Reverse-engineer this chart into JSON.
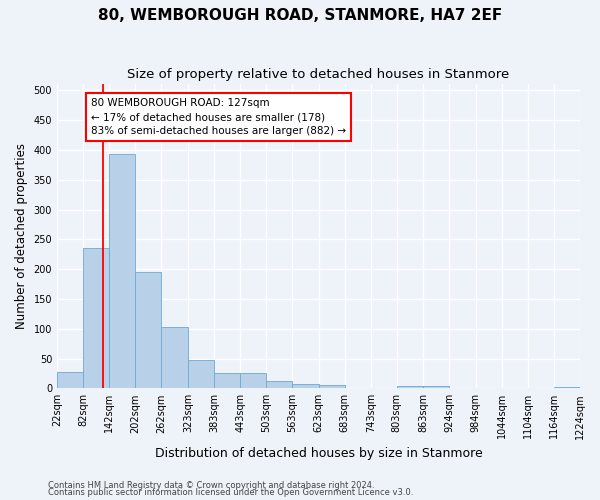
{
  "title": "80, WEMBOROUGH ROAD, STANMORE, HA7 2EF",
  "subtitle": "Size of property relative to detached houses in Stanmore",
  "xlabel": "Distribution of detached houses by size in Stanmore",
  "ylabel": "Number of detached properties",
  "footer_line1": "Contains HM Land Registry data © Crown copyright and database right 2024.",
  "footer_line2": "Contains public sector information licensed under the Open Government Licence v3.0.",
  "annotation_line1": "80 WEMBOROUGH ROAD: 127sqm",
  "annotation_line2": "← 17% of detached houses are smaller (178)",
  "annotation_line3": "83% of semi-detached houses are larger (882) →",
  "bar_edges": [
    22,
    82,
    142,
    202,
    262,
    323,
    383,
    443,
    503,
    563,
    623,
    683,
    743,
    803,
    863,
    924,
    984,
    1044,
    1104,
    1164,
    1224
  ],
  "bar_heights": [
    28,
    236,
    394,
    196,
    103,
    47,
    25,
    25,
    12,
    7,
    6,
    0,
    0,
    4,
    4,
    0,
    0,
    0,
    0,
    3
  ],
  "bar_color": "#b8d0e8",
  "bar_edge_color": "#6aaad4",
  "red_line_x": 127,
  "ylim": [
    0,
    510
  ],
  "xlim": [
    22,
    1224
  ],
  "background_color": "#eef2f9",
  "grid_color": "#ffffff",
  "title_fontsize": 11,
  "subtitle_fontsize": 9.5,
  "xlabel_fontsize": 9,
  "ylabel_fontsize": 8.5,
  "tick_fontsize": 7,
  "annotation_fontsize": 7.5,
  "footer_fontsize": 6
}
